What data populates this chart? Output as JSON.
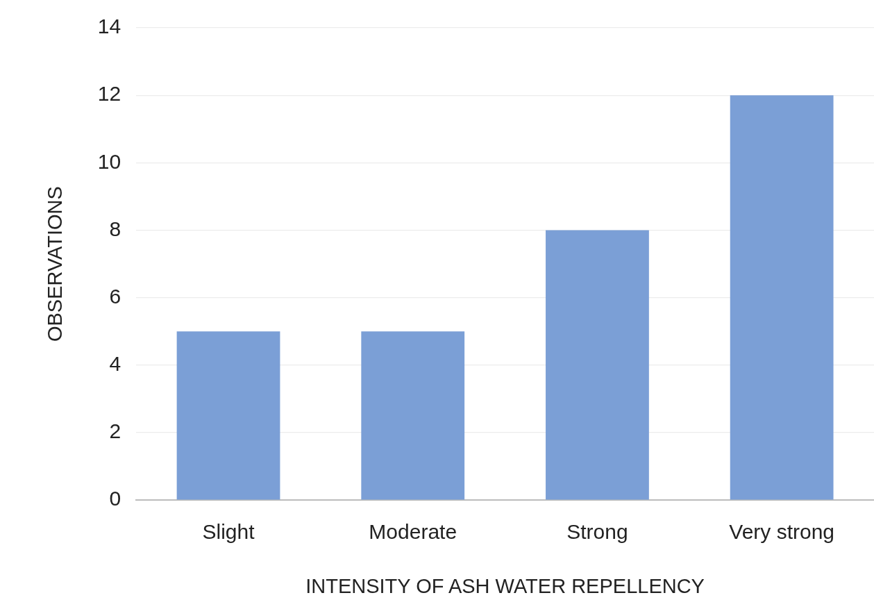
{
  "chart_data": {
    "type": "bar",
    "xlabel": "INTENSITY OF ASH WATER REPELLENCY",
    "ylabel": "OBSERVATIONS",
    "categories": [
      "Slight",
      "Moderate",
      "Strong",
      "Very strong"
    ],
    "values": [
      5,
      5,
      8,
      12
    ],
    "color": "#7b9fd6",
    "ylim": [
      0,
      14
    ],
    "yticks": [
      0,
      2,
      4,
      6,
      8,
      10,
      12,
      14
    ],
    "grid": "y",
    "legend": false
  }
}
